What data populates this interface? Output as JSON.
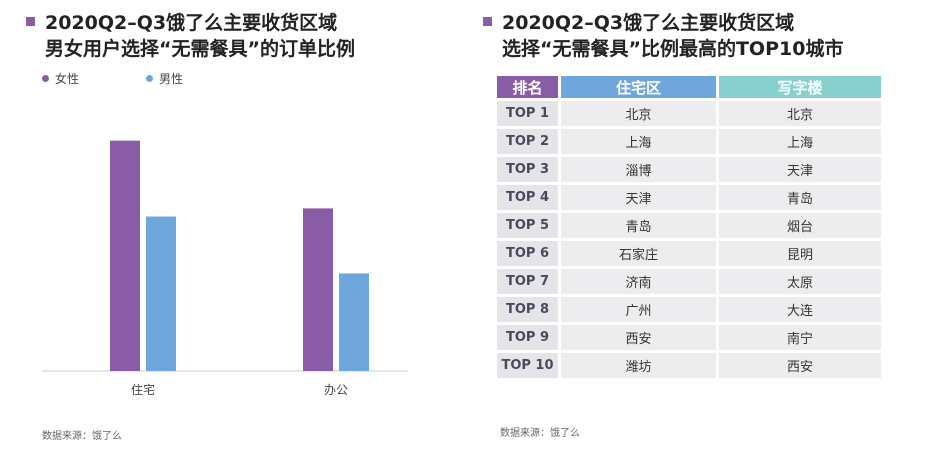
{
  "left_panel": {
    "title_line1": "2020Q2–Q3饿了么主要收货区域",
    "title_line2": "男女用户选择“无需餐具”的订单比例",
    "source": "数据来源：饿了么"
  },
  "right_panel": {
    "title_line1": "2020Q2–Q3饿了么主要收货区域",
    "title_line2": "选择“无需餐具”比例最高的TOP10城市",
    "source": "数据来源：饿了么",
    "table": {
      "headers": [
        "排名",
        "住宅区",
        "写字楼"
      ],
      "rows": [
        {
          "rank": "TOP 1",
          "residential": "北京",
          "office": "北京"
        },
        {
          "rank": "TOP 2",
          "residential": "上海",
          "office": "上海"
        },
        {
          "rank": "TOP 3",
          "residential": "淄博",
          "office": "天津"
        },
        {
          "rank": "TOP 4",
          "residential": "天津",
          "office": "青岛"
        },
        {
          "rank": "TOP 5",
          "residential": "青岛",
          "office": "烟台"
        },
        {
          "rank": "TOP 6",
          "residential": "石家庄",
          "office": "昆明"
        },
        {
          "rank": "TOP 7",
          "residential": "济南",
          "office": "太原"
        },
        {
          "rank": "TOP 8",
          "residential": "广州",
          "office": "大连"
        },
        {
          "rank": "TOP 9",
          "residential": "西安",
          "office": "南宁"
        },
        {
          "rank": "TOP 10",
          "residential": "潍坊",
          "office": "西安"
        }
      ]
    }
  },
  "colors": {
    "female": "#8a5ba6",
    "male": "#6fa6dc",
    "office_header": "#87d0ce"
  },
  "chart_data": {
    "type": "bar",
    "title": "2020Q2–Q3饿了么主要收货区域 男女用户选择“无需餐具”的订单比例",
    "categories": [
      "住宅",
      "办公"
    ],
    "series": [
      {
        "name": "女性",
        "values": [
          0.85,
          0.6
        ]
      },
      {
        "name": "男性",
        "values": [
          0.57,
          0.36
        ]
      }
    ],
    "ylim": [
      0,
      1
    ],
    "value_labels_shown": false,
    "grid": false,
    "legend_position": "top-left"
  }
}
